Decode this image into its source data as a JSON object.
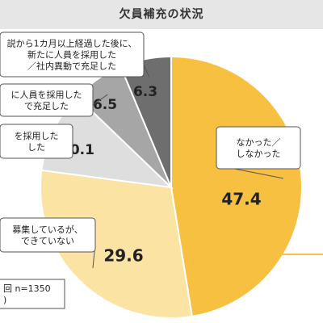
{
  "chart_data": {
    "type": "pie",
    "title": "欠員補充の状況",
    "slices": [
      {
        "label_lines": [
          "なかった／",
          "しなかった"
        ],
        "value": 47.4,
        "color": "#f8c040"
      },
      {
        "label_lines": [
          "募集しているが、",
          "できていない"
        ],
        "value": 29.6,
        "color": "#fbe3a4"
      },
      {
        "label_lines": [
          "を採用した",
          "した"
        ],
        "value": 10.1,
        "color": "#dedede"
      },
      {
        "label_lines": [
          "に人員を採用した",
          "で充足した"
        ],
        "value": 6.5,
        "color": "#a6a6a6"
      },
      {
        "label_lines": [
          "説から1カ月以上経過した後に、",
          "新たに人員を採用した",
          "／社内異動で充足した"
        ],
        "value": 6.3,
        "color": "#6e6e6e"
      }
    ],
    "note_lines": [
      "回 n=1350",
      ")"
    ]
  }
}
